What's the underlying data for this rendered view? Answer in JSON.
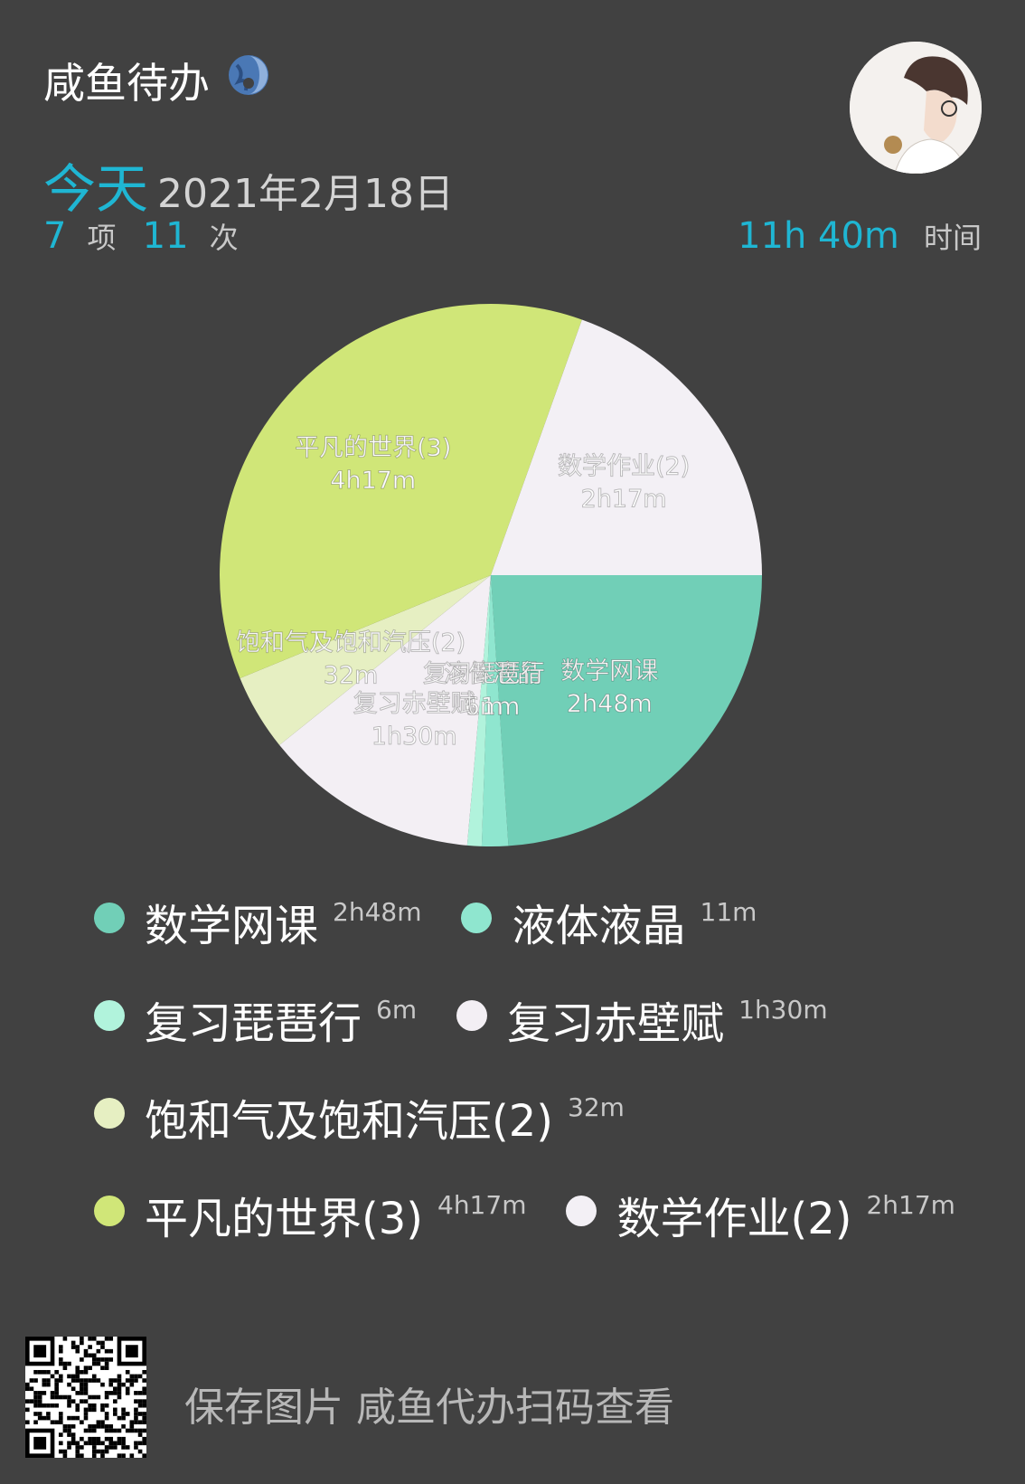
{
  "header": {
    "app_title": "咸鱼待办",
    "today_label": "今天",
    "date": "2021年2月18日",
    "item_count": "7",
    "item_unit": "项",
    "session_count": "11",
    "session_unit": "次",
    "total_time": "11h 40m",
    "total_time_unit": "时间"
  },
  "icons": {
    "title_icon": "globe-icon",
    "avatar": "avatar-illustration",
    "qr": "qr-code"
  },
  "colors": {
    "accent": "#1fb6d3",
    "background": "#414141"
  },
  "chart_data": {
    "type": "pie",
    "slices": [
      {
        "name": "数学网课",
        "label_line1": "数学网课",
        "label_line2": "2h48m",
        "minutes": 168,
        "color": "#71cfb7"
      },
      {
        "name": "液体液晶",
        "label_line1": "液体液晶",
        "label_line2": "11m",
        "minutes": 11,
        "color": "#8fe6cf"
      },
      {
        "name": "复习琵琶行",
        "label_line1": "复习琵琶行",
        "label_line2": "6m",
        "minutes": 6,
        "color": "#b1f3dc"
      },
      {
        "name": "复习赤壁赋",
        "label_line1": "复习赤壁赋",
        "label_line2": "1h30m",
        "minutes": 90,
        "color": "#f3eff4"
      },
      {
        "name": "饱和气及饱和汽压(2)",
        "label_line1": "饱和气及饱和汽压(2)",
        "label_line2": "32m",
        "minutes": 32,
        "color": "#e6efc2"
      },
      {
        "name": "平凡的世界(3)",
        "label_line1": "平凡的世界(3)",
        "label_line2": "4h17m",
        "minutes": 257,
        "color": "#d0e678"
      },
      {
        "name": "数学作业(2)",
        "label_line1": "数学作业(2)",
        "label_line2": "2h17m",
        "minutes": 137,
        "color": "#f3f0f5"
      }
    ]
  },
  "legend": [
    {
      "name": "数学网课",
      "time": "2h48m",
      "color": "#71cfb7"
    },
    {
      "name": "液体液晶",
      "time": "11m",
      "color": "#8fe6cf"
    },
    {
      "name": "复习琵琶行",
      "time": "6m",
      "color": "#b1f3dc"
    },
    {
      "name": "复习赤壁赋",
      "time": "1h30m",
      "color": "#f3eff4"
    },
    {
      "name": "饱和气及饱和汽压(2)",
      "time": "32m",
      "color": "#e6efc2"
    },
    {
      "name": "平凡的世界(3)",
      "time": "4h17m",
      "color": "#d0e678"
    },
    {
      "name": "数学作业(2)",
      "time": "2h17m",
      "color": "#f3f0f5"
    }
  ],
  "footer": {
    "text": "保存图片 咸鱼代办扫码查看"
  }
}
